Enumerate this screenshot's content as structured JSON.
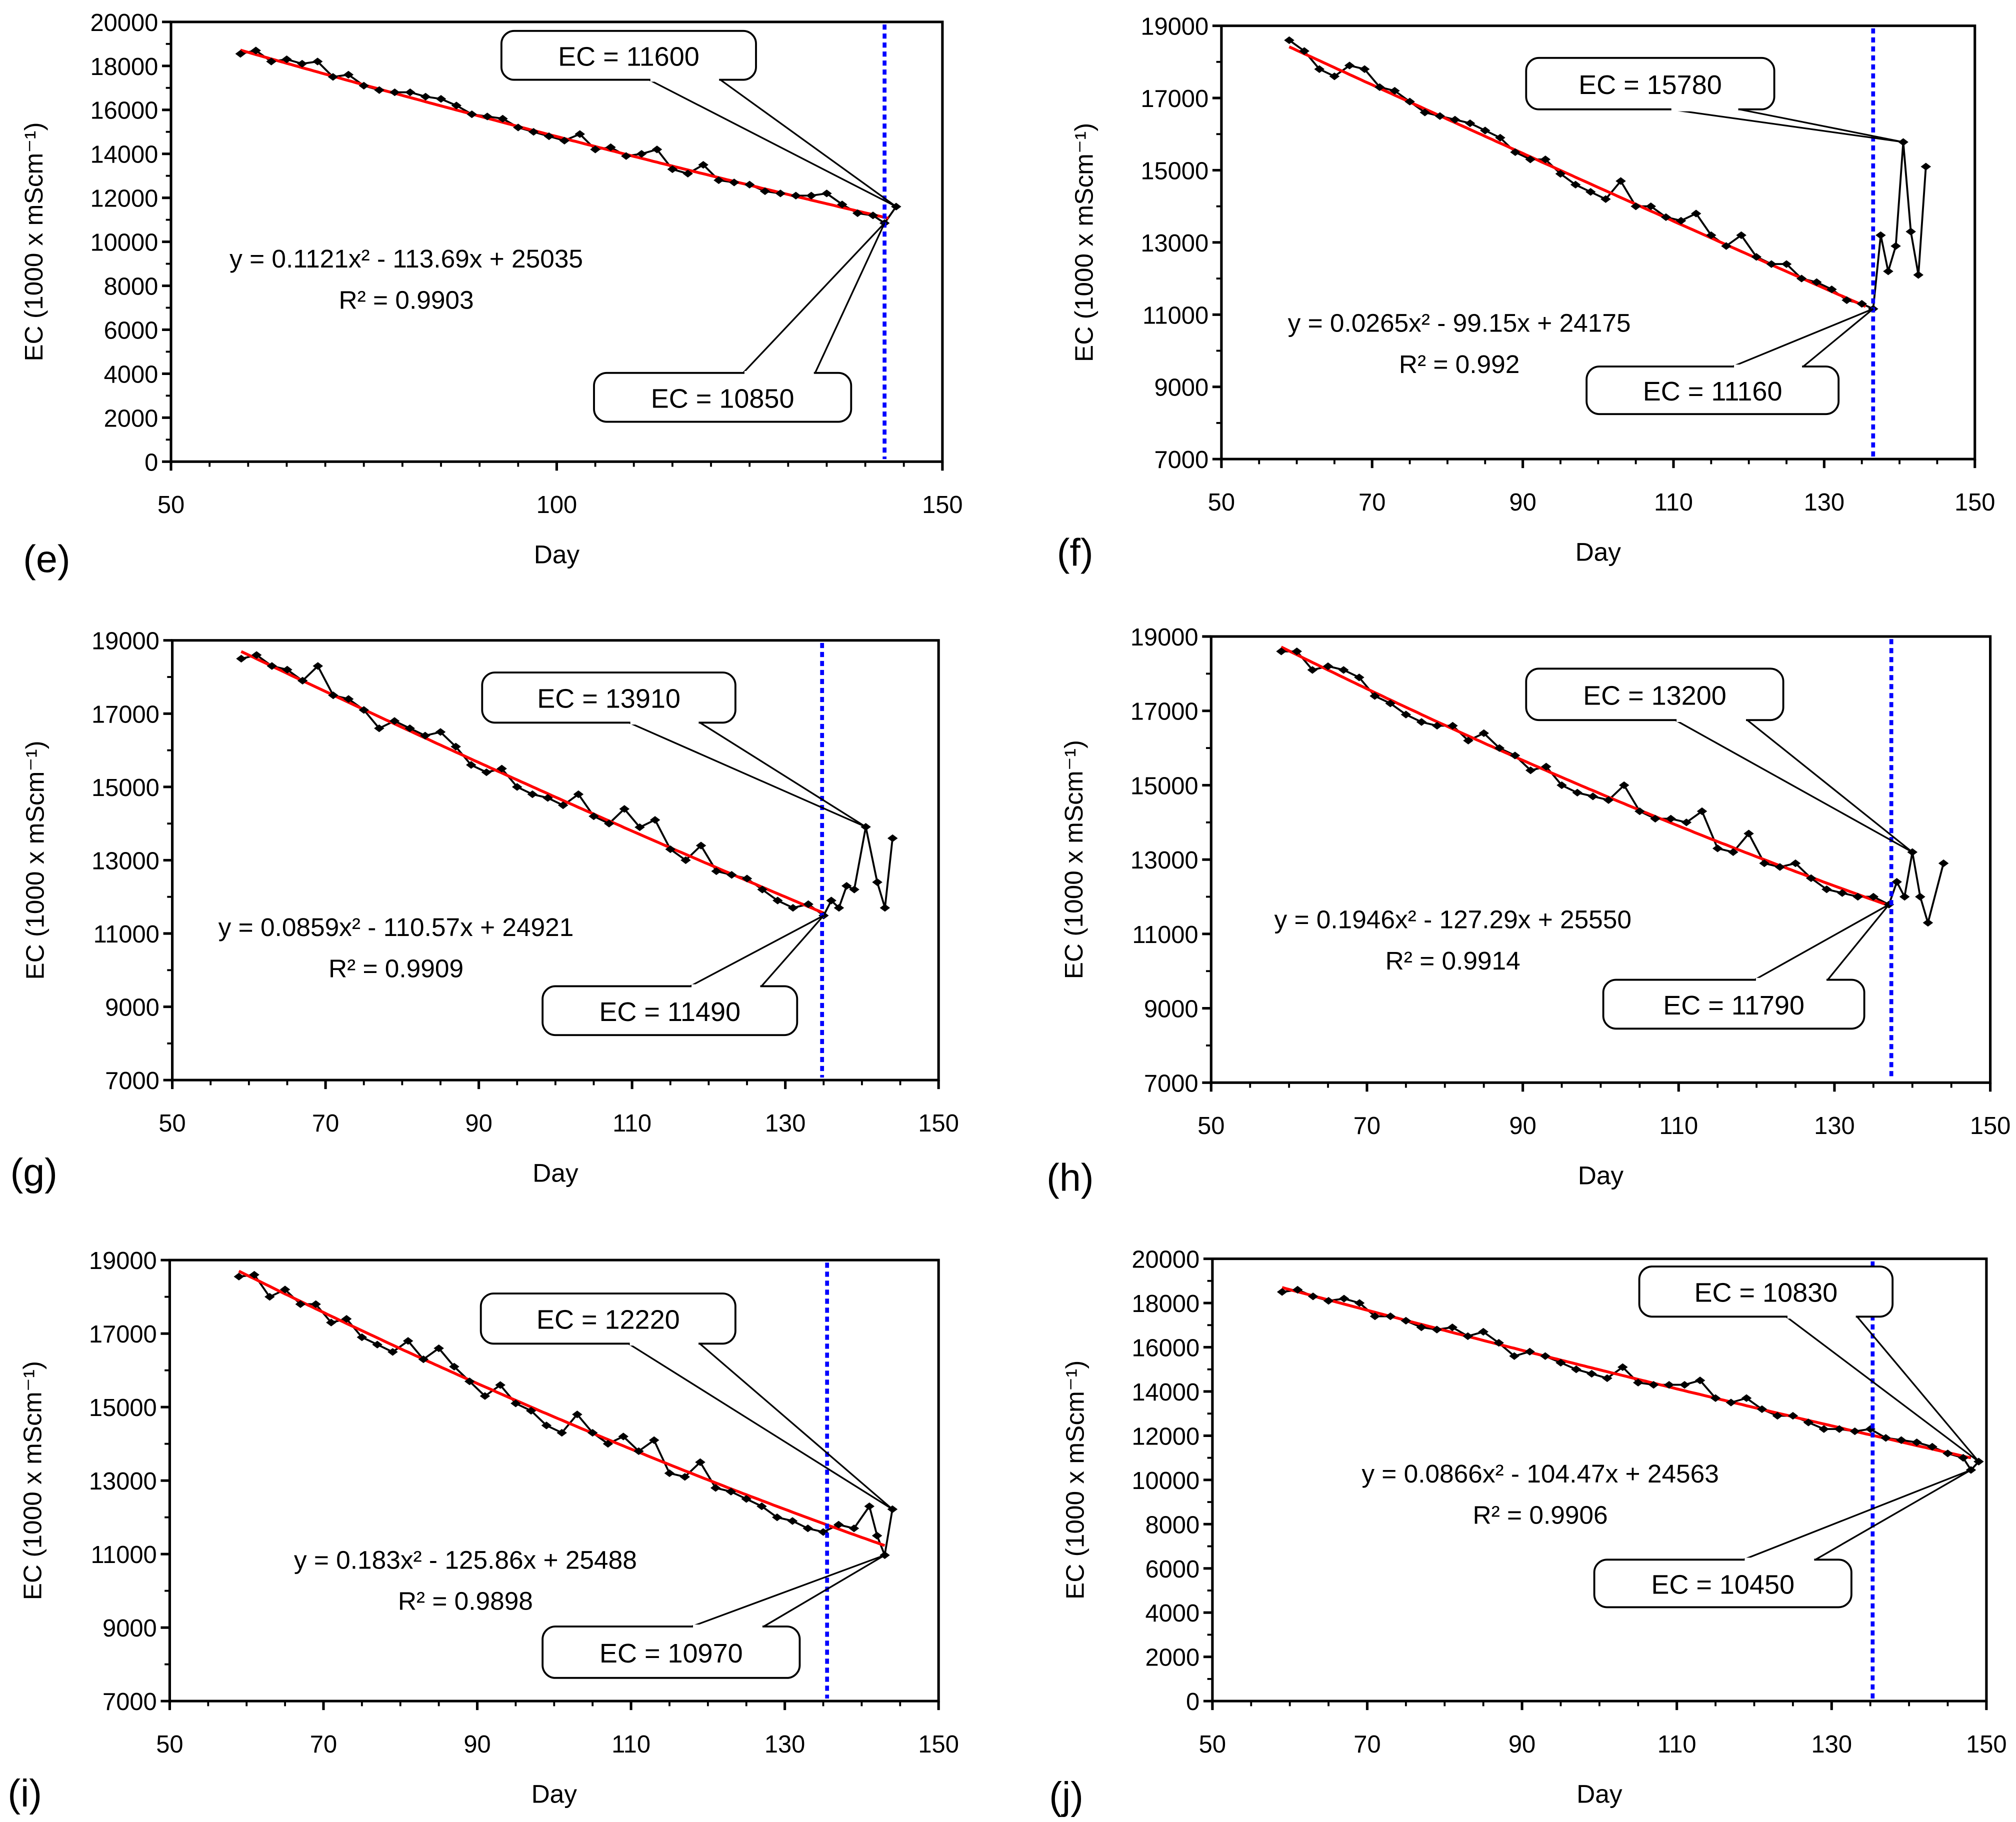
{
  "chart_data": [
    {
      "panel": "(e)",
      "type": "scatter-line",
      "xlabel": "Day",
      "ylabel": "EC (1000 x mScm⁻¹)",
      "xlim": [
        50,
        150
      ],
      "xticks": [
        50,
        100,
        150
      ],
      "ylim": [
        0,
        20000
      ],
      "ytick_step": 2000,
      "fit": {
        "coeffs": [
          0.1121,
          -113.69,
          25035
        ],
        "range": [
          59,
          143
        ],
        "equation": "y = 0.1121x² - 113.69x + 25035",
        "r2": "R² = 0.9903"
      },
      "vline_day": 142.5,
      "x": [
        59,
        61,
        63,
        65,
        67,
        69,
        71,
        73,
        75,
        77,
        79,
        81,
        83,
        85,
        87,
        89,
        91,
        93,
        95,
        97,
        99,
        101,
        103,
        105,
        107,
        109,
        111,
        113,
        115,
        117,
        119,
        121,
        123,
        125,
        127,
        129,
        131,
        133,
        135,
        137,
        139,
        141,
        142.5,
        144
      ],
      "y": [
        18550,
        18700,
        18200,
        18300,
        18100,
        18200,
        17500,
        17600,
        17100,
        16900,
        16800,
        16800,
        16600,
        16500,
        16200,
        15800,
        15700,
        15600,
        15200,
        15000,
        14800,
        14600,
        14900,
        14200,
        14300,
        13900,
        14000,
        14200,
        13300,
        13100,
        13500,
        12800,
        12700,
        12600,
        12300,
        12200,
        12100,
        12100,
        12200,
        11700,
        11300,
        11200,
        10850,
        11600
      ],
      "callouts": [
        {
          "label": "EC = 11600",
          "day": 144,
          "ec": 11600
        },
        {
          "label": "EC = 10850",
          "day": 142.5,
          "ec": 10850
        }
      ]
    },
    {
      "panel": "(f)",
      "type": "scatter-line",
      "xlabel": "Day",
      "ylabel": "EC (1000 x mScm⁻¹)",
      "xlim": [
        50,
        150
      ],
      "xticks": [
        50,
        70,
        90,
        110,
        130,
        150
      ],
      "ylim": [
        7000,
        19000
      ],
      "ytick_step": 2000,
      "fit": {
        "coeffs": [
          0.0265,
          -99.15,
          24175
        ],
        "range": [
          59,
          135.5
        ],
        "equation": "y = 0.0265x² - 99.15x + 24175",
        "r2": "R² = 0.992"
      },
      "vline_day": 136.5,
      "x": [
        59,
        61,
        63,
        65,
        67,
        69,
        71,
        73,
        75,
        77,
        79,
        81,
        83,
        85,
        87,
        89,
        91,
        93,
        95,
        97,
        99,
        101,
        103,
        105,
        107,
        109,
        111,
        113,
        115,
        117,
        119,
        121,
        123,
        125,
        127,
        129,
        131,
        133,
        135,
        136.5,
        137.5,
        138.5,
        139.5,
        140.5,
        141.5,
        142.5,
        143.5
      ],
      "y": [
        18600,
        18300,
        17800,
        17600,
        17900,
        17800,
        17300,
        17200,
        16900,
        16600,
        16500,
        16400,
        16300,
        16100,
        15900,
        15500,
        15300,
        15300,
        14900,
        14600,
        14400,
        14200,
        14700,
        14000,
        14000,
        13700,
        13600,
        13800,
        13200,
        12900,
        13200,
        12600,
        12400,
        12400,
        12000,
        11900,
        11700,
        11400,
        11300,
        11160,
        13200,
        12200,
        12900,
        15780,
        13300,
        12100,
        15100
      ],
      "callouts": [
        {
          "label": "EC = 15780",
          "day": 140.5,
          "ec": 15780
        },
        {
          "label": "EC = 11160",
          "day": 136.5,
          "ec": 11160
        }
      ]
    },
    {
      "panel": "(g)",
      "type": "scatter-line",
      "xlabel": "Day",
      "ylabel": "EC (1000 x mScm⁻¹)",
      "xlim": [
        50,
        150
      ],
      "xticks": [
        50,
        70,
        90,
        110,
        130,
        150
      ],
      "ylim": [
        7000,
        19000
      ],
      "ytick_step": 2000,
      "fit": {
        "coeffs": [
          0.0859,
          -110.57,
          24921
        ],
        "range": [
          59,
          135
        ],
        "equation": "y = 0.0859x² - 110.57x + 24921",
        "r2": "R² = 0.9909"
      },
      "vline_day": 134.8,
      "x": [
        59,
        61,
        63,
        65,
        67,
        69,
        71,
        73,
        75,
        77,
        79,
        81,
        83,
        85,
        87,
        89,
        91,
        93,
        95,
        97,
        99,
        101,
        103,
        105,
        107,
        109,
        111,
        113,
        115,
        117,
        119,
        121,
        123,
        125,
        127,
        129,
        131,
        133,
        135,
        136,
        137,
        138,
        139,
        140.5,
        142,
        143,
        144
      ],
      "y": [
        18500,
        18600,
        18300,
        18200,
        17900,
        18300,
        17500,
        17400,
        17100,
        16600,
        16800,
        16600,
        16400,
        16500,
        16100,
        15600,
        15400,
        15500,
        15000,
        14800,
        14700,
        14500,
        14800,
        14200,
        14000,
        14400,
        13900,
        14100,
        13300,
        13000,
        13400,
        12700,
        12600,
        12500,
        12200,
        11900,
        11700,
        11800,
        11490,
        11900,
        11700,
        12300,
        12200,
        13910,
        12400,
        11700,
        13600
      ],
      "callouts": [
        {
          "label": "EC = 13910",
          "day": 140.5,
          "ec": 13910
        },
        {
          "label": "EC = 11490",
          "day": 135,
          "ec": 11490
        }
      ]
    },
    {
      "panel": "(h)",
      "type": "scatter-line",
      "xlabel": "Day",
      "ylabel": "EC (1000 x mScm⁻¹)",
      "xlim": [
        50,
        150
      ],
      "xticks": [
        50,
        70,
        90,
        110,
        130,
        150
      ],
      "ylim": [
        7000,
        19000
      ],
      "ytick_step": 2000,
      "fit": {
        "coeffs": [
          0.1946,
          -127.29,
          25550
        ],
        "range": [
          59,
          137
        ],
        "equation": "y = 0.1946x² - 127.29x + 25550",
        "r2": "R² = 0.9914"
      },
      "vline_day": 137.3,
      "x": [
        59,
        61,
        63,
        65,
        67,
        69,
        71,
        73,
        75,
        77,
        79,
        81,
        83,
        85,
        87,
        89,
        91,
        93,
        95,
        97,
        99,
        101,
        103,
        105,
        107,
        109,
        111,
        113,
        115,
        117,
        119,
        121,
        123,
        125,
        127,
        129,
        131,
        133,
        135,
        137,
        138,
        139,
        140,
        141,
        142,
        144
      ],
      "y": [
        18600,
        18600,
        18100,
        18200,
        18100,
        17900,
        17400,
        17200,
        16900,
        16700,
        16600,
        16600,
        16200,
        16400,
        16000,
        15800,
        15400,
        15500,
        15000,
        14800,
        14700,
        14600,
        15000,
        14300,
        14100,
        14100,
        14000,
        14300,
        13300,
        13200,
        13700,
        12900,
        12800,
        12900,
        12500,
        12200,
        12100,
        12000,
        12000,
        11790,
        12400,
        12000,
        13200,
        12000,
        11300,
        12900
      ],
      "callouts": [
        {
          "label": "EC = 13200",
          "day": 140,
          "ec": 13200
        },
        {
          "label": "EC = 11790",
          "day": 137,
          "ec": 11790
        }
      ]
    },
    {
      "panel": "(i)",
      "type": "scatter-line",
      "xlabel": "Day",
      "ylabel": "EC (1000 x mScm⁻¹)",
      "xlim": [
        50,
        150
      ],
      "xticks": [
        50,
        70,
        90,
        110,
        130,
        150
      ],
      "ylim": [
        7000,
        19000
      ],
      "ytick_step": 2000,
      "fit": {
        "coeffs": [
          0.183,
          -125.86,
          25488
        ],
        "range": [
          59,
          143
        ],
        "equation": "y = 0.183x² - 125.86x + 25488",
        "r2": "R² = 0.9898"
      },
      "vline_day": 135.5,
      "x": [
        59,
        61,
        63,
        65,
        67,
        69,
        71,
        73,
        75,
        77,
        79,
        81,
        83,
        85,
        87,
        89,
        91,
        93,
        95,
        97,
        99,
        101,
        103,
        105,
        107,
        109,
        111,
        113,
        115,
        117,
        119,
        121,
        123,
        125,
        127,
        129,
        131,
        133,
        135,
        137,
        139,
        141,
        142,
        143,
        144
      ],
      "y": [
        18550,
        18600,
        18000,
        18200,
        17800,
        17800,
        17300,
        17400,
        16900,
        16700,
        16500,
        16800,
        16300,
        16600,
        16100,
        15700,
        15300,
        15600,
        15100,
        14900,
        14500,
        14300,
        14800,
        14300,
        14000,
        14200,
        13800,
        14100,
        13200,
        13100,
        13500,
        12800,
        12700,
        12500,
        12300,
        12000,
        11900,
        11700,
        11600,
        11800,
        11700,
        12300,
        11500,
        10970,
        12220
      ],
      "callouts": [
        {
          "label": "EC = 12220",
          "day": 144,
          "ec": 12220
        },
        {
          "label": "EC = 10970",
          "day": 143,
          "ec": 10970
        }
      ]
    },
    {
      "panel": "(j)",
      "type": "scatter-line",
      "xlabel": "Day",
      "ylabel": "EC (1000 x mScm⁻¹)",
      "xlim": [
        50,
        150
      ],
      "xticks": [
        50,
        70,
        90,
        110,
        130,
        150
      ],
      "ylim": [
        0,
        20000
      ],
      "ytick_step": 2000,
      "fit": {
        "coeffs": [
          0.0866,
          -104.47,
          24563
        ],
        "range": [
          59,
          148
        ],
        "equation": "y = 0.0866x² - 104.47x + 24563",
        "r2": "R² = 0.9906"
      },
      "vline_day": 135.3,
      "x": [
        59,
        61,
        63,
        65,
        67,
        69,
        71,
        73,
        75,
        77,
        79,
        81,
        83,
        85,
        87,
        89,
        91,
        93,
        95,
        97,
        99,
        101,
        103,
        105,
        107,
        109,
        111,
        113,
        115,
        117,
        119,
        121,
        123,
        125,
        127,
        129,
        131,
        133,
        135,
        137,
        139,
        141,
        143,
        145,
        147,
        148,
        149
      ],
      "y": [
        18500,
        18600,
        18300,
        18100,
        18200,
        18000,
        17400,
        17400,
        17200,
        16900,
        16800,
        16900,
        16500,
        16700,
        16200,
        15600,
        15800,
        15600,
        15300,
        15000,
        14800,
        14600,
        15100,
        14400,
        14300,
        14300,
        14300,
        14500,
        13700,
        13500,
        13700,
        13200,
        12900,
        12900,
        12600,
        12300,
        12300,
        12200,
        12300,
        11900,
        11800,
        11700,
        11500,
        11200,
        11000,
        10450,
        10830
      ],
      "callouts": [
        {
          "label": "EC = 10830",
          "day": 149,
          "ec": 10830
        },
        {
          "label": "EC = 10450",
          "day": 148,
          "ec": 10450
        }
      ]
    }
  ],
  "colors": {
    "data": "#000000",
    "fit": "#ff0000",
    "vline": "#0000ff"
  }
}
